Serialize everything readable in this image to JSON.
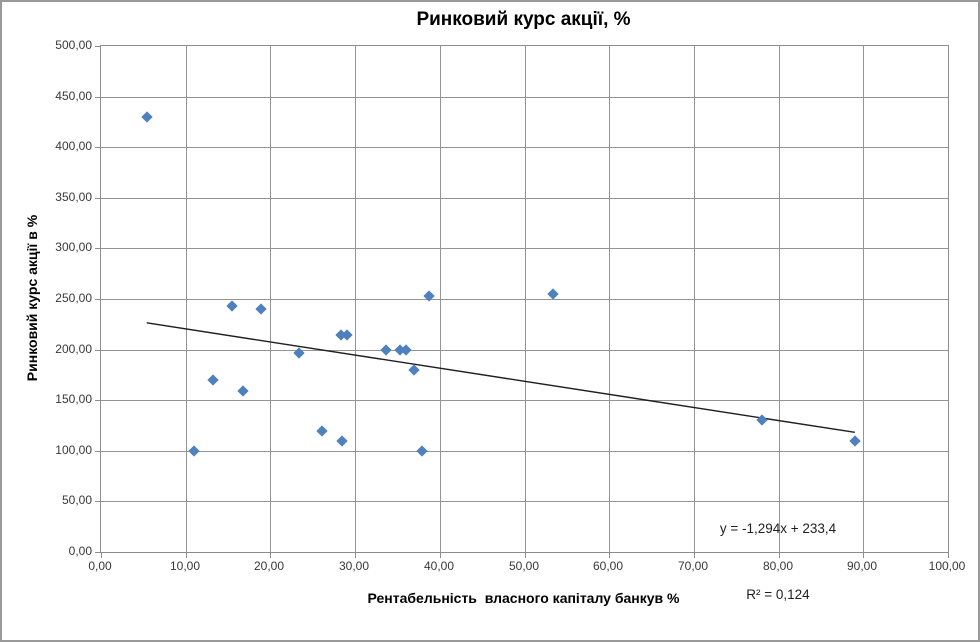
{
  "window": {
    "background": "#ffffff",
    "border_color": "#9a9a9a"
  },
  "chart_data": {
    "type": "scatter",
    "title": "Ринковий курс акції, %",
    "xlabel": "Рентабельність  власного капіталу банкув %",
    "ylabel": "Ринковий курс акції в %",
    "xlim": [
      0,
      100
    ],
    "ylim": [
      0,
      500
    ],
    "grid": true,
    "gridline_color": "#949494",
    "tick_label_color": "#383838",
    "x_ticks": {
      "values": [
        0,
        10,
        20,
        30,
        40,
        50,
        60,
        70,
        80,
        90,
        100
      ],
      "labels": [
        "0,00",
        "10,00",
        "20,00",
        "30,00",
        "40,00",
        "50,00",
        "60,00",
        "70,00",
        "80,00",
        "90,00",
        "100,00"
      ]
    },
    "y_ticks": {
      "values": [
        0,
        50,
        100,
        150,
        200,
        250,
        300,
        350,
        400,
        450,
        500
      ],
      "labels": [
        "0,00",
        "50,00",
        "100,00",
        "150,00",
        "200,00",
        "250,00",
        "300,00",
        "350,00",
        "400,00",
        "450,00",
        "500,00"
      ]
    },
    "points": [
      [
        5.4,
        430
      ],
      [
        11,
        100
      ],
      [
        13.2,
        170
      ],
      [
        15.5,
        243
      ],
      [
        16.8,
        159
      ],
      [
        18.9,
        240
      ],
      [
        23.4,
        197
      ],
      [
        26.1,
        120
      ],
      [
        28.3,
        214
      ],
      [
        28.5,
        110
      ],
      [
        29,
        214
      ],
      [
        33.6,
        200
      ],
      [
        35.3,
        200
      ],
      [
        36,
        200
      ],
      [
        37,
        180
      ],
      [
        37.9,
        100
      ],
      [
        38.7,
        253
      ],
      [
        53.4,
        255
      ],
      [
        78,
        130
      ],
      [
        89,
        110
      ]
    ],
    "marker": {
      "shape": "diamond",
      "color": "#4f81bd",
      "size": 11
    },
    "trendline": {
      "slope": -1.294,
      "intercept": 233.4,
      "x_start": 5.4,
      "x_end": 89,
      "color": "#1f1f1f",
      "equation_label": "y = -1,294x + 233,4",
      "r_squared_label": "R² = 0,124"
    }
  }
}
